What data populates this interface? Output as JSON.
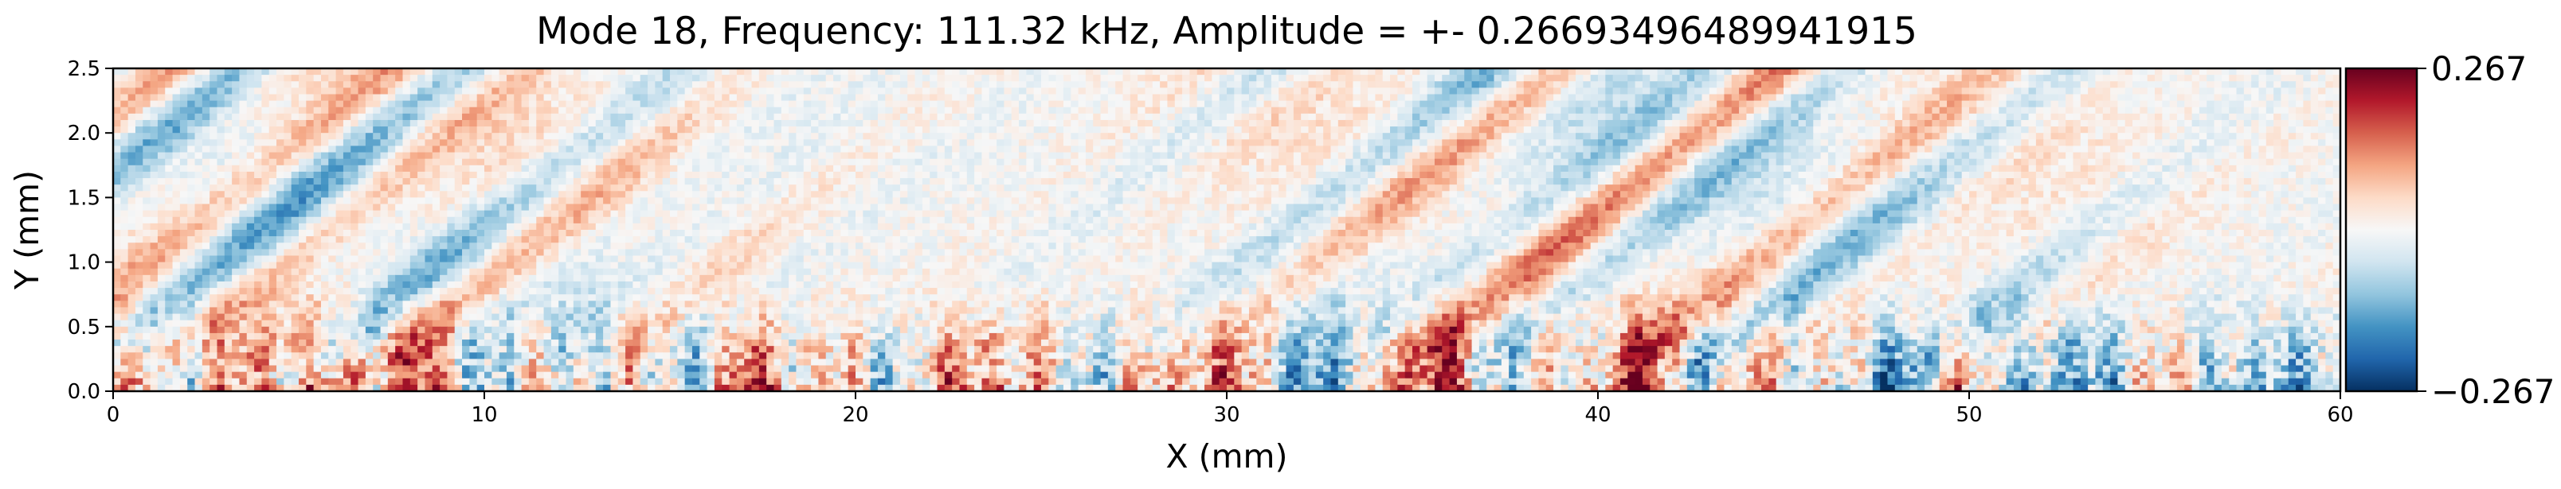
{
  "chart_data": {
    "type": "heatmap",
    "title": "Mode 18, Frequency: 111.32 kHz, Amplitude = +- 0.26693496489941915",
    "xlabel": "X (mm)",
    "ylabel": "Y (mm)",
    "xlim": [
      0,
      60
    ],
    "ylim": [
      0,
      2.5
    ],
    "xticks": [
      0,
      10,
      20,
      30,
      40,
      50,
      60
    ],
    "xtick_labels": [
      "0",
      "10",
      "20",
      "30",
      "40",
      "50",
      "60"
    ],
    "yticks": [
      0.0,
      0.5,
      1.0,
      1.5,
      2.0,
      2.5
    ],
    "ytick_labels": [
      "0.0",
      "0.5",
      "1.0",
      "1.5",
      "2.0",
      "2.5"
    ],
    "grid": false,
    "colormap": "RdBu_r",
    "colormap_colors": [
      "#053061",
      "#2166ac",
      "#4393c3",
      "#92c5de",
      "#d1e5f0",
      "#f7f7f7",
      "#fddbc7",
      "#f4a582",
      "#d6604d",
      "#b2182b",
      "#67001f"
    ],
    "vmin": -0.267,
    "vmax": 0.267,
    "colorbar": {
      "placement": "right",
      "tick_values": [
        0.267,
        -0.267
      ],
      "tick_labels": [
        "0.267",
        "−0.267"
      ]
    },
    "field_description": "diagonal striped pattern of alternating red (positive) and blue (negative) bands tilted up-right in the upper region; strong noisy vertical streaks of alternating sign near the wall (Y < 0.8 mm)",
    "strong_wall_streaks_x_mm": [
      4.7,
      8.0,
      17.5,
      23.5,
      29.5,
      33.0,
      34.5,
      36.0,
      41.0,
      47.5,
      52.5,
      58.0
    ],
    "strong_wall_streaks_sign": [
      1,
      1,
      1,
      1,
      1,
      -1,
      1,
      1,
      1,
      -1,
      -1,
      -1
    ]
  }
}
